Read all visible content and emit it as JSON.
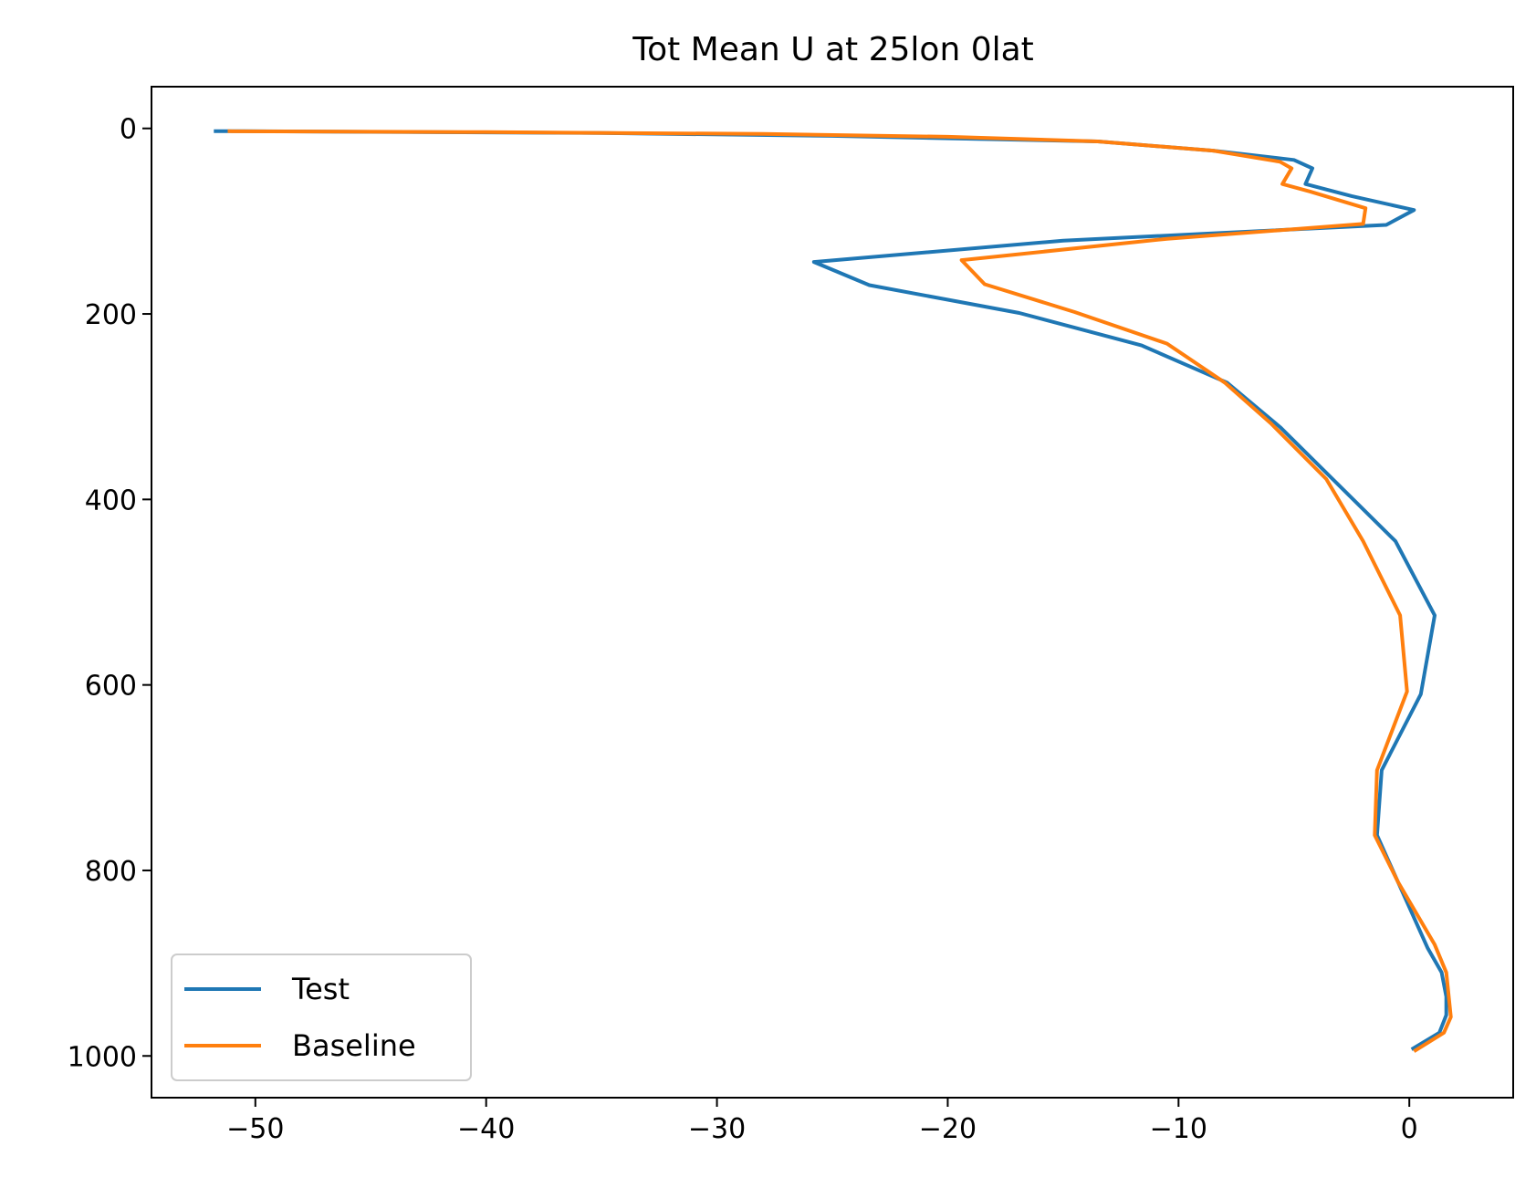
{
  "chart_data": {
    "type": "line",
    "title": "Tot Mean U at 25lon 0lat",
    "xlabel": "",
    "ylabel": "",
    "xlim": [
      -54.5,
      4.5
    ],
    "ylim": [
      1045,
      -45
    ],
    "y_inverted": true,
    "x_ticks": [
      -50,
      -40,
      -30,
      -20,
      -10,
      0
    ],
    "x_tick_labels": [
      "−50",
      "−40",
      "−30",
      "−20",
      "−10",
      "0"
    ],
    "y_ticks": [
      0,
      200,
      400,
      600,
      800,
      1000
    ],
    "y_tick_labels": [
      "0",
      "200",
      "400",
      "600",
      "800",
      "1000"
    ],
    "grid": false,
    "legend_position": "lower-left",
    "series": [
      {
        "name": "Test",
        "color": "#1f77b4",
        "points": [
          [
            -51.8,
            3
          ],
          [
            -50.5,
            3
          ],
          [
            -35.0,
            5
          ],
          [
            -25.0,
            8
          ],
          [
            -13.5,
            14
          ],
          [
            -8.5,
            24
          ],
          [
            -5.0,
            34
          ],
          [
            -4.2,
            43
          ],
          [
            -4.5,
            60
          ],
          [
            -2.5,
            73
          ],
          [
            0.2,
            88
          ],
          [
            -1.0,
            104
          ],
          [
            -15.0,
            121
          ],
          [
            -25.8,
            144
          ],
          [
            -23.4,
            169
          ],
          [
            -16.9,
            199
          ],
          [
            -11.6,
            234
          ],
          [
            -7.9,
            274
          ],
          [
            -5.6,
            322
          ],
          [
            -0.6,
            445
          ],
          [
            1.1,
            525
          ],
          [
            0.5,
            610
          ],
          [
            -1.2,
            692
          ],
          [
            -1.4,
            762
          ],
          [
            -0.5,
            812
          ],
          [
            0.8,
            884
          ],
          [
            1.4,
            910
          ],
          [
            1.6,
            936
          ],
          [
            1.6,
            956
          ],
          [
            1.3,
            975
          ],
          [
            0.1,
            993
          ]
        ]
      },
      {
        "name": "Baseline",
        "color": "#ff7f0e",
        "points": [
          [
            -51.2,
            3
          ],
          [
            -40.0,
            4
          ],
          [
            -28.0,
            6
          ],
          [
            -20.0,
            9
          ],
          [
            -13.5,
            14
          ],
          [
            -8.5,
            24
          ],
          [
            -5.6,
            36
          ],
          [
            -5.1,
            43
          ],
          [
            -5.5,
            60
          ],
          [
            -4.3,
            68
          ],
          [
            -1.9,
            86
          ],
          [
            -2.0,
            103
          ],
          [
            -10.5,
            119
          ],
          [
            -19.4,
            142
          ],
          [
            -18.4,
            168
          ],
          [
            -14.5,
            198
          ],
          [
            -10.5,
            232
          ],
          [
            -8.0,
            274
          ],
          [
            -6.0,
            318
          ],
          [
            -3.6,
            378
          ],
          [
            -2.0,
            445
          ],
          [
            -0.4,
            525
          ],
          [
            -0.1,
            607
          ],
          [
            -1.4,
            692
          ],
          [
            -1.5,
            762
          ],
          [
            -0.5,
            812
          ],
          [
            1.1,
            880
          ],
          [
            1.6,
            910
          ],
          [
            1.7,
            934
          ],
          [
            1.8,
            958
          ],
          [
            1.5,
            975
          ],
          [
            0.2,
            995
          ]
        ]
      }
    ]
  }
}
